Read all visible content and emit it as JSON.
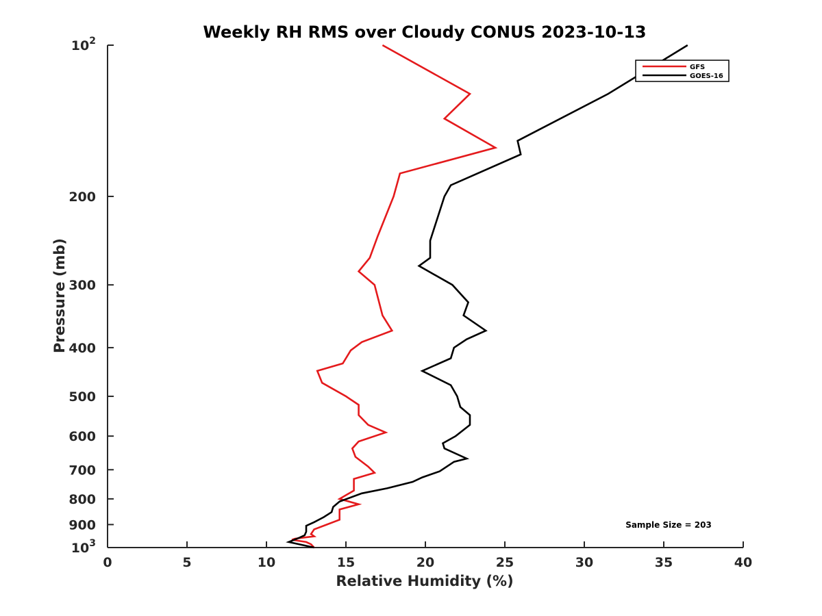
{
  "chart_data": {
    "type": "line",
    "title": "Weekly RH RMS over Cloudy CONUS 2023-10-13",
    "xlabel": "Relative Humidity (%)",
    "ylabel": "Pressure (mb)",
    "xlim": [
      0,
      40
    ],
    "ylim": [
      100,
      1000
    ],
    "y_scale": "log",
    "y_reversed": true,
    "grid": false,
    "legend_position": "top-right",
    "x_ticks": [
      "0",
      "5",
      "10",
      "15",
      "20",
      "25",
      "30",
      "35",
      "40"
    ],
    "x_tick_values": [
      0,
      5,
      10,
      15,
      20,
      25,
      30,
      35,
      40
    ],
    "y_ticks": [
      {
        "value": 100,
        "label": "10",
        "sup": "2"
      },
      {
        "value": 200,
        "label": "200",
        "sup": ""
      },
      {
        "value": 300,
        "label": "300",
        "sup": ""
      },
      {
        "value": 400,
        "label": "400",
        "sup": ""
      },
      {
        "value": 500,
        "label": "500",
        "sup": ""
      },
      {
        "value": 600,
        "label": "600",
        "sup": ""
      },
      {
        "value": 700,
        "label": "700",
        "sup": ""
      },
      {
        "value": 800,
        "label": "800",
        "sup": ""
      },
      {
        "value": 900,
        "label": "900",
        "sup": ""
      },
      {
        "value": 1000,
        "label": "10",
        "sup": "3"
      }
    ],
    "series": [
      {
        "name": "GFS",
        "color": "#e41a1c",
        "points": [
          [
            17.3,
            100
          ],
          [
            22.8,
            125
          ],
          [
            21.2,
            140
          ],
          [
            24.4,
            160
          ],
          [
            18.4,
            180
          ],
          [
            18.0,
            200
          ],
          [
            17.0,
            240
          ],
          [
            16.5,
            265
          ],
          [
            15.8,
            282
          ],
          [
            16.8,
            300
          ],
          [
            17.3,
            345
          ],
          [
            17.9,
            370
          ],
          [
            16.0,
            390
          ],
          [
            15.3,
            405
          ],
          [
            14.8,
            430
          ],
          [
            13.2,
            445
          ],
          [
            13.5,
            470
          ],
          [
            15.0,
            500
          ],
          [
            15.8,
            520
          ],
          [
            15.8,
            545
          ],
          [
            16.4,
            570
          ],
          [
            17.5,
            590
          ],
          [
            15.8,
            615
          ],
          [
            15.4,
            635
          ],
          [
            15.6,
            660
          ],
          [
            16.4,
            690
          ],
          [
            16.8,
            710
          ],
          [
            15.5,
            730
          ],
          [
            15.5,
            770
          ],
          [
            14.6,
            800
          ],
          [
            15.8,
            820
          ],
          [
            14.6,
            840
          ],
          [
            14.6,
            880
          ],
          [
            13.8,
            900
          ],
          [
            13.0,
            920
          ],
          [
            12.8,
            940
          ],
          [
            13.0,
            950
          ],
          [
            11.8,
            960
          ],
          [
            11.6,
            965
          ],
          [
            12.5,
            975
          ],
          [
            12.8,
            985
          ],
          [
            13.0,
            1000
          ]
        ]
      },
      {
        "name": "GOES-16",
        "color": "#000000",
        "points": [
          [
            36.5,
            100
          ],
          [
            31.5,
            125
          ],
          [
            25.8,
            155
          ],
          [
            26.0,
            165
          ],
          [
            21.6,
            190
          ],
          [
            21.2,
            200
          ],
          [
            20.3,
            245
          ],
          [
            20.3,
            265
          ],
          [
            19.6,
            275
          ],
          [
            21.7,
            300
          ],
          [
            22.7,
            325
          ],
          [
            22.4,
            345
          ],
          [
            23.8,
            370
          ],
          [
            22.6,
            385
          ],
          [
            21.8,
            400
          ],
          [
            21.6,
            420
          ],
          [
            19.8,
            445
          ],
          [
            21.6,
            475
          ],
          [
            22.0,
            500
          ],
          [
            22.2,
            525
          ],
          [
            22.8,
            545
          ],
          [
            22.8,
            570
          ],
          [
            21.9,
            600
          ],
          [
            21.1,
            620
          ],
          [
            21.2,
            635
          ],
          [
            22.6,
            665
          ],
          [
            21.8,
            675
          ],
          [
            20.9,
            705
          ],
          [
            19.8,
            725
          ],
          [
            19.2,
            740
          ],
          [
            17.6,
            762
          ],
          [
            16.0,
            780
          ],
          [
            14.6,
            810
          ],
          [
            14.2,
            830
          ],
          [
            14.1,
            850
          ],
          [
            13.6,
            870
          ],
          [
            13.0,
            890
          ],
          [
            12.5,
            905
          ],
          [
            12.5,
            930
          ],
          [
            12.4,
            945
          ],
          [
            12.1,
            955
          ],
          [
            11.4,
            975
          ],
          [
            13.0,
            1000
          ]
        ]
      }
    ],
    "annotation": "Sample Size = 203"
  }
}
